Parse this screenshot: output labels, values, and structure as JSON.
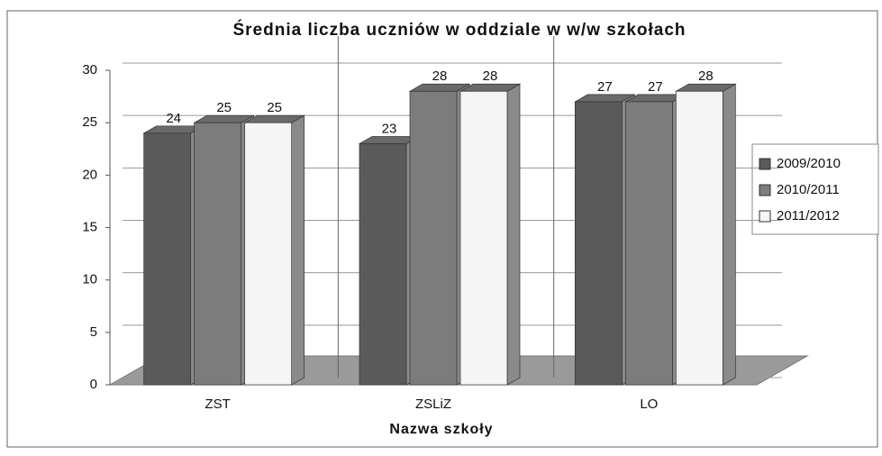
{
  "chart_data": {
    "type": "bar3d",
    "title": "Średnia liczba uczniów w oddziale w w/w szkołach",
    "x_label": "Nazwa szkoły",
    "categories": [
      "ZST",
      "ZSLiZ",
      "LO"
    ],
    "series": [
      {
        "name": "2009/2010",
        "color": "#5a5a5a",
        "values": [
          24,
          23,
          27
        ]
      },
      {
        "name": "2010/2011",
        "color": "#7c7c7c",
        "values": [
          25,
          28,
          27
        ]
      },
      {
        "name": "2011/2012",
        "color": "#f5f5f5",
        "values": [
          25,
          28,
          28
        ]
      }
    ],
    "ylim": [
      0,
      30
    ],
    "yticks": [
      0,
      5,
      10,
      15,
      20,
      25,
      30
    ],
    "grid": true,
    "legend": "right"
  }
}
